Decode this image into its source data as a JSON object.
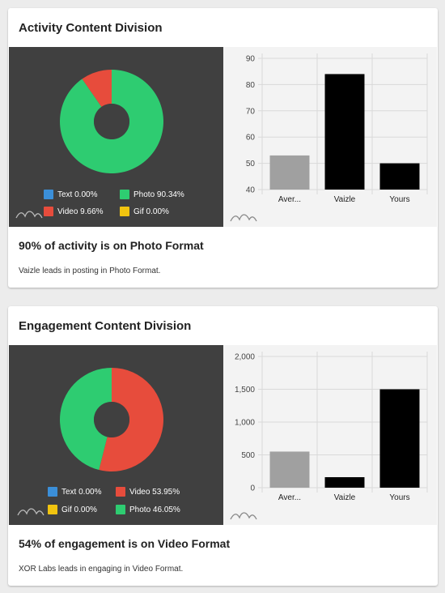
{
  "cards": [
    {
      "title": "Activity Content Division",
      "legend": [
        {
          "label": "Text 0.00%",
          "color": "#3b8fd9"
        },
        {
          "label": "Photo 90.34%",
          "color": "#2ecc71"
        },
        {
          "label": "Video 9.66%",
          "color": "#e74c3c"
        },
        {
          "label": "Gif 0.00%",
          "color": "#f1c40f"
        }
      ],
      "headline": "90% of activity is on Photo Format",
      "subtext": "Vaizle leads in posting in Photo Format."
    },
    {
      "title": "Engagement Content Division",
      "legend": [
        {
          "label": "Text 0.00%",
          "color": "#3b8fd9"
        },
        {
          "label": "Video 53.95%",
          "color": "#e74c3c"
        },
        {
          "label": "Gif 0.00%",
          "color": "#f1c40f"
        },
        {
          "label": "Photo 46.05%",
          "color": "#2ecc71"
        }
      ],
      "headline": "54% of engagement is on Video Format",
      "subtext": "XOR Labs leads in engaging in Video Format."
    }
  ],
  "chart_data": [
    {
      "type": "pie",
      "categories": [
        "Text",
        "Photo",
        "Video",
        "Gif"
      ],
      "values": [
        0.0,
        90.34,
        9.66,
        0.0
      ],
      "colors": [
        "#3b8fd9",
        "#2ecc71",
        "#e74c3c",
        "#f1c40f"
      ]
    },
    {
      "type": "bar",
      "categories": [
        "Aver...",
        "Vaizle",
        "Yours"
      ],
      "values": [
        53,
        84,
        50
      ],
      "colors": [
        "#a0a0a0",
        "#000000",
        "#000000"
      ],
      "ylim": [
        40,
        90
      ],
      "yticks": [
        "40",
        "50",
        "60",
        "70",
        "80",
        "90"
      ],
      "yticks_values": [
        40,
        50,
        60,
        70,
        80,
        90
      ],
      "grid": true
    },
    {
      "type": "pie",
      "categories": [
        "Text",
        "Video",
        "Gif",
        "Photo"
      ],
      "values": [
        0.0,
        53.95,
        0.0,
        46.05
      ],
      "colors": [
        "#3b8fd9",
        "#e74c3c",
        "#f1c40f",
        "#2ecc71"
      ]
    },
    {
      "type": "bar",
      "categories": [
        "Aver...",
        "Vaizle",
        "Yours"
      ],
      "values": [
        550,
        160,
        1500
      ],
      "colors": [
        "#a0a0a0",
        "#000000",
        "#000000"
      ],
      "ylim": [
        0,
        2000
      ],
      "yticks": [
        "0",
        "500",
        "1,000",
        "1,500",
        "2,000"
      ],
      "yticks_values": [
        0,
        500,
        1000,
        1500,
        2000
      ],
      "grid": true
    }
  ]
}
